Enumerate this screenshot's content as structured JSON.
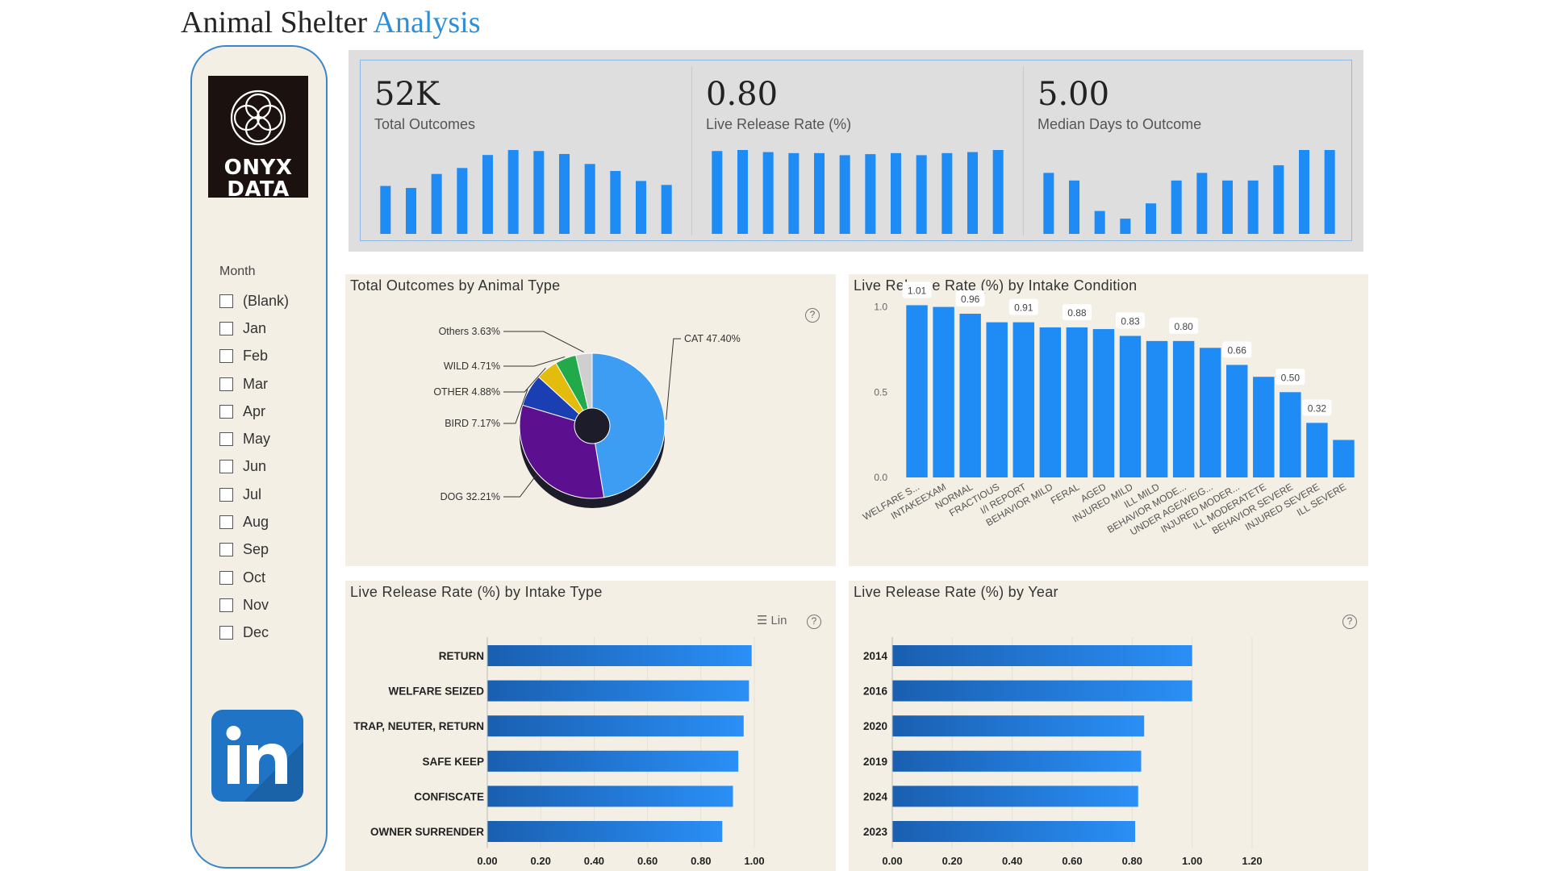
{
  "header": {
    "title_part1": "Animal Shelter ",
    "title_part2": "Analysis"
  },
  "colors": {
    "accent": "#1f8bf4",
    "panel": "#f3efe5",
    "bar_dark": "#1a5fb0",
    "bar_light": "#2a8ff6"
  },
  "sidebar": {
    "logo_line1": "ONYX",
    "logo_line2": "DATA",
    "slicer_title": "Month",
    "months": [
      "(Blank)",
      "Jan",
      "Feb",
      "Mar",
      "Apr",
      "May",
      "Jun",
      "Jul",
      "Aug",
      "Sep",
      "Oct",
      "Nov",
      "Dec"
    ],
    "linkedin_icon": "linkedin-icon"
  },
  "kpis": [
    {
      "value": "52K",
      "label": "Total Outcomes",
      "sparkline": [
        48,
        46,
        60,
        66,
        79,
        84,
        83,
        80,
        70,
        63,
        53,
        49
      ]
    },
    {
      "value": "0.80",
      "label": "Live Release Rate (%)",
      "sparkline": [
        0.8,
        0.81,
        0.79,
        0.78,
        0.78,
        0.76,
        0.77,
        0.78,
        0.76,
        0.78,
        0.79,
        0.81
      ]
    },
    {
      "value": "5.00",
      "label": "Median Days to Outcome",
      "sparkline": [
        8,
        7,
        3,
        2,
        4.0,
        7,
        8,
        7,
        7,
        9,
        11,
        11
      ]
    }
  ],
  "chart_data": [
    {
      "type": "pie",
      "title": "Total Outcomes by Animal Type",
      "categories": [
        "CAT",
        "DOG",
        "BIRD",
        "OTHER",
        "WILD",
        "Others"
      ],
      "values": [
        47.4,
        32.21,
        7.17,
        4.88,
        4.71,
        3.63
      ],
      "labels": [
        "CAT 47.40%",
        "DOG 32.21%",
        "BIRD 7.17%",
        "OTHER 4.88%",
        "WILD 4.71%",
        "Others 3.63%"
      ],
      "colors": [
        "#3d9df2",
        "#5c0f8f",
        "#1a3fb3",
        "#e3bc0e",
        "#22aa4a",
        "#cfcfcf"
      ],
      "help_icon": "help-icon"
    },
    {
      "type": "bar",
      "title": "Live Release Rate (%) by Intake Condition",
      "categories": [
        "WELFARE S...",
        "INTAKEEXAM",
        "NORMAL",
        "FRACTIOUS",
        "I/I REPORT",
        "BEHAVIOR MILD",
        "FERAL",
        "AGED",
        "INJURED MILD",
        "ILL MILD",
        "BEHAVIOR MODE...",
        "UNDER AGE/WEIG...",
        "INJURED MODER...",
        "ILL MODERATETE",
        "BEHAVIOR SEVERE",
        "INJURED SEVERE",
        "ILL SEVERE"
      ],
      "values": [
        1.01,
        1.0,
        0.96,
        0.91,
        0.91,
        0.88,
        0.88,
        0.87,
        0.83,
        0.8,
        0.8,
        0.76,
        0.66,
        0.59,
        0.5,
        0.32,
        0.22
      ],
      "data_labels": [
        "1.01",
        "",
        "0.96",
        "",
        "0.91",
        "",
        "0.88",
        "",
        "0.83",
        "",
        "0.80",
        "",
        "0.66",
        "",
        "0.50",
        "0.32",
        ""
      ],
      "yticks": [
        "0.0",
        "0.5",
        "1.0"
      ],
      "ylim": [
        0,
        1.05
      ]
    },
    {
      "type": "bar",
      "orientation": "horizontal",
      "title": "Live Release Rate (%) by Intake Type",
      "categories": [
        "RETURN",
        "WELFARE SEIZED",
        "TRAP, NEUTER, RETURN",
        "SAFE KEEP",
        "CONFISCATE",
        "OWNER SURRENDER"
      ],
      "values": [
        0.99,
        0.98,
        0.96,
        0.94,
        0.92,
        0.88
      ],
      "xticks": [
        "0.00",
        "0.20",
        "0.40",
        "0.60",
        "0.80",
        "1.00"
      ],
      "xlim": [
        0,
        1.0
      ],
      "legend_toggle": "Lin",
      "help_icon": "help-icon"
    },
    {
      "type": "bar",
      "orientation": "horizontal",
      "title": "Live Release Rate (%) by Year",
      "categories": [
        "2014",
        "2016",
        "2020",
        "2019",
        "2024",
        "2023"
      ],
      "values": [
        1.0,
        1.0,
        0.84,
        0.83,
        0.82,
        0.81
      ],
      "xticks": [
        "0.00",
        "0.20",
        "0.40",
        "0.60",
        "0.80",
        "1.00",
        "1.20"
      ],
      "xlim": [
        0,
        1.2
      ],
      "help_icon": "help-icon"
    }
  ]
}
